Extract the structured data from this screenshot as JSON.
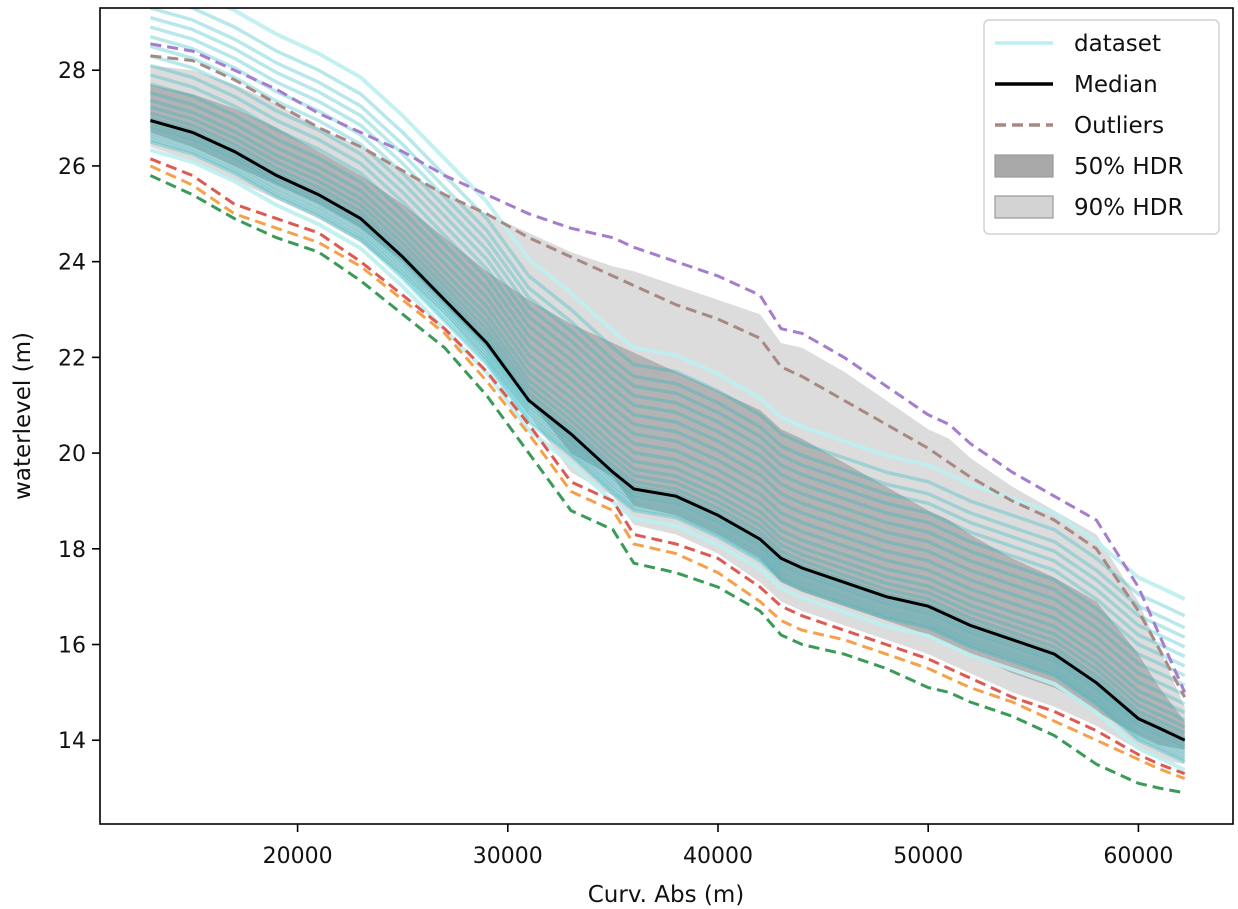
{
  "chart_data": {
    "type": "line",
    "title": "",
    "xlabel": "Curv. Abs (m)",
    "ylabel": "waterlevel (m)",
    "xlim": [
      10600,
      64500
    ],
    "ylim": [
      12.25,
      29.3
    ],
    "x_ticks": [
      20000,
      30000,
      40000,
      50000,
      60000
    ],
    "y_ticks": [
      14,
      16,
      18,
      20,
      22,
      24,
      26,
      28
    ],
    "grid": false,
    "legend_position": "top-right",
    "legend": [
      {
        "label": "dataset",
        "style": "line",
        "color": "#bdeef0"
      },
      {
        "label": "Median",
        "style": "line",
        "color": "#000000"
      },
      {
        "label": "Outliers",
        "style": "dashed",
        "color": "#a88882"
      },
      {
        "label": "50% HDR",
        "style": "patch",
        "color": "#a9a9a9"
      },
      {
        "label": "90% HDR",
        "style": "patch",
        "color": "#d3d3d3"
      }
    ],
    "x": [
      13000,
      15000,
      17000,
      19000,
      21000,
      23000,
      25000,
      27000,
      29000,
      31000,
      33000,
      35000,
      36000,
      38000,
      40000,
      42000,
      43000,
      44000,
      46000,
      48000,
      50000,
      51000,
      52000,
      54000,
      56000,
      58000,
      60000,
      61000,
      62200
    ],
    "series": [
      {
        "name": "Median",
        "color": "#000000",
        "dash": false,
        "width": 3,
        "values": [
          26.95,
          26.7,
          26.3,
          25.8,
          25.4,
          24.9,
          24.1,
          23.2,
          22.3,
          21.1,
          20.4,
          19.6,
          19.25,
          19.1,
          18.7,
          18.2,
          17.8,
          17.6,
          17.3,
          17.0,
          16.8,
          16.6,
          16.4,
          16.1,
          15.8,
          15.2,
          14.45,
          14.25,
          14.0
        ]
      },
      {
        "color": "#a88882",
        "dash": true,
        "width": 3,
        "values": [
          28.3,
          28.2,
          27.8,
          27.3,
          26.8,
          26.4,
          25.9,
          25.4,
          25.0,
          24.5,
          24.1,
          23.7,
          23.5,
          23.1,
          22.8,
          22.4,
          21.8,
          21.6,
          21.1,
          20.6,
          20.1,
          19.8,
          19.5,
          19.0,
          18.6,
          18.0,
          16.7,
          15.9,
          14.9
        ]
      },
      {
        "color": "#a67dcc",
        "dash": true,
        "width": 3,
        "values": [
          28.55,
          28.4,
          28.0,
          27.6,
          27.1,
          26.7,
          26.3,
          25.8,
          25.4,
          25.0,
          24.7,
          24.5,
          24.3,
          24.0,
          23.7,
          23.3,
          22.6,
          22.5,
          22.0,
          21.4,
          20.8,
          20.6,
          20.2,
          19.6,
          19.1,
          18.6,
          17.2,
          16.2,
          15.0
        ]
      },
      {
        "color": "#dd5a54",
        "dash": true,
        "width": 3,
        "values": [
          26.15,
          25.8,
          25.2,
          24.9,
          24.6,
          24.0,
          23.3,
          22.6,
          21.7,
          20.6,
          19.4,
          19.0,
          18.3,
          18.1,
          17.8,
          17.2,
          16.8,
          16.6,
          16.3,
          16.0,
          15.7,
          15.5,
          15.3,
          14.9,
          14.6,
          14.2,
          13.7,
          13.5,
          13.3
        ]
      },
      {
        "color": "#f5a04a",
        "dash": true,
        "width": 3,
        "values": [
          26.0,
          25.6,
          25.0,
          24.7,
          24.4,
          23.9,
          23.2,
          22.5,
          21.5,
          20.4,
          19.2,
          18.8,
          18.1,
          17.9,
          17.5,
          16.9,
          16.5,
          16.3,
          16.1,
          15.8,
          15.5,
          15.3,
          15.1,
          14.8,
          14.4,
          14.0,
          13.6,
          13.4,
          13.2
        ]
      },
      {
        "color": "#3a9a58",
        "dash": true,
        "width": 3,
        "values": [
          25.8,
          25.4,
          24.9,
          24.5,
          24.2,
          23.6,
          22.9,
          22.2,
          21.2,
          20.0,
          18.8,
          18.4,
          17.7,
          17.5,
          17.2,
          16.7,
          16.2,
          16.0,
          15.8,
          15.5,
          15.1,
          15.0,
          14.8,
          14.5,
          14.1,
          13.5,
          13.1,
          13.0,
          12.9
        ]
      }
    ],
    "bands": [
      {
        "name": "90% HDR",
        "color": "#d3d3d3",
        "lower": [
          26.4,
          26.1,
          25.7,
          25.3,
          24.9,
          24.4,
          23.7,
          22.9,
          21.9,
          20.8,
          19.6,
          19.1,
          18.5,
          18.3,
          17.9,
          17.3,
          16.9,
          16.7,
          16.4,
          16.1,
          15.8,
          15.6,
          15.4,
          15.0,
          14.7,
          14.3,
          13.8,
          13.6,
          13.5
        ],
        "upper": [
          28.1,
          28.0,
          27.7,
          27.3,
          26.8,
          26.4,
          25.9,
          25.4,
          25.0,
          24.6,
          24.2,
          23.9,
          23.8,
          23.5,
          23.2,
          22.9,
          22.3,
          22.2,
          21.7,
          21.1,
          20.5,
          20.3,
          19.9,
          19.3,
          18.8,
          18.3,
          16.9,
          15.9,
          14.7
        ]
      },
      {
        "name": "50% HDR",
        "color": "#a9a9a9",
        "lower": [
          26.7,
          26.4,
          26.0,
          25.6,
          25.2,
          24.7,
          24.0,
          23.1,
          22.2,
          21.1,
          20.0,
          19.5,
          18.9,
          18.7,
          18.3,
          17.8,
          17.3,
          17.1,
          16.8,
          16.5,
          16.2,
          16.0,
          15.8,
          15.4,
          15.1,
          14.6,
          14.1,
          13.9,
          13.8
        ],
        "upper": [
          27.7,
          27.5,
          27.2,
          26.8,
          26.3,
          25.8,
          25.2,
          24.5,
          23.8,
          23.2,
          22.7,
          22.3,
          22.1,
          21.7,
          21.3,
          20.9,
          20.5,
          20.3,
          19.8,
          19.3,
          18.8,
          18.6,
          18.3,
          17.8,
          17.4,
          16.9,
          15.8,
          15.1,
          14.4
        ]
      }
    ],
    "dataset_curves": {
      "name": "dataset",
      "color_light": "#bdeef0",
      "color_main": "#22b9c3",
      "offsets": [
        -0.45,
        -0.4,
        -0.33,
        -0.26,
        -0.18,
        -0.12,
        -0.05,
        0.05,
        0.15,
        0.28,
        0.42,
        0.58,
        0.76,
        0.95,
        1.15,
        1.35,
        1.55,
        1.75,
        1.95,
        2.15,
        2.35,
        2.6
      ],
      "outer_upper_offset": 2.95,
      "outer_lower_offset": -0.62
    }
  }
}
